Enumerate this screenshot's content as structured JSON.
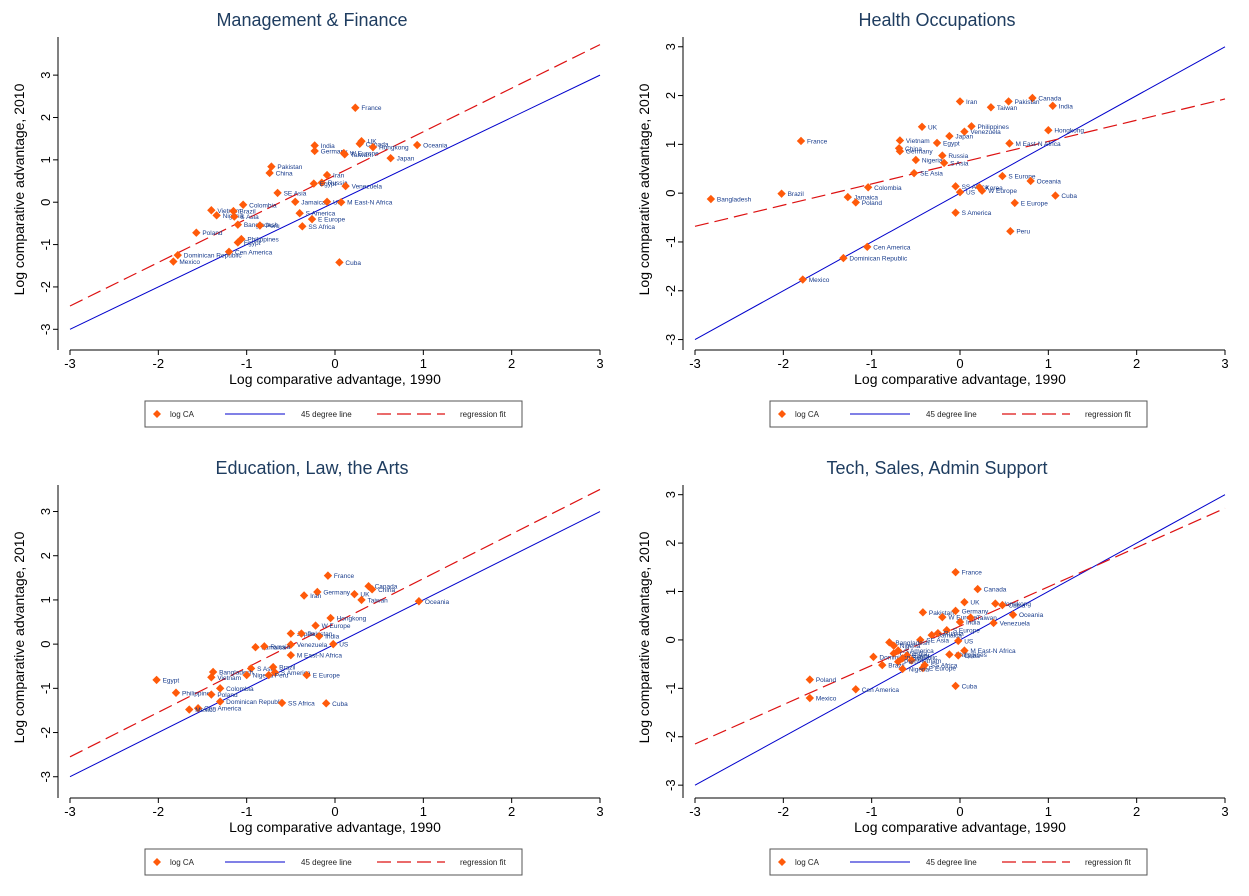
{
  "colors": {
    "marker": "#ff5a0a",
    "fortyfive": "#0000cc",
    "fit": "#dd1111",
    "axis": "#000000",
    "title": "#1f3d60",
    "point_label": "#1a3d8c"
  },
  "legend": {
    "marker_label": "log CA",
    "line45_label": "45 degree line",
    "fit_label": "regression fit"
  },
  "chart_data": [
    {
      "type": "scatter",
      "title": "Management & Finance",
      "xlabel": "Log comparative advantage, 1990",
      "ylabel": "Log comparative advantage, 2010",
      "xlim": [
        -3,
        3
      ],
      "ylim": [
        -3.3,
        3.9
      ],
      "xticks": [
        -3,
        -2,
        -1,
        0,
        1,
        2,
        3
      ],
      "yticks": [
        -3,
        -2,
        -1,
        0,
        1,
        2,
        3
      ],
      "fit_line": {
        "x": [
          -3,
          3
        ],
        "y": [
          -2.45,
          3.72
        ]
      },
      "line45": {
        "x": [
          -3,
          3
        ],
        "y": [
          -3,
          3
        ]
      },
      "points": [
        {
          "label": "France",
          "x": 0.23,
          "y": 2.23
        },
        {
          "label": "UK",
          "x": 0.3,
          "y": 1.44
        },
        {
          "label": "Canada",
          "x": 0.28,
          "y": 1.38
        },
        {
          "label": "India",
          "x": -0.23,
          "y": 1.34
        },
        {
          "label": "Hongkong",
          "x": 0.43,
          "y": 1.3
        },
        {
          "label": "Oceania",
          "x": 0.93,
          "y": 1.35
        },
        {
          "label": "Germany",
          "x": -0.23,
          "y": 1.21
        },
        {
          "label": "W Europe",
          "x": 0.1,
          "y": 1.16
        },
        {
          "label": "Taiwan",
          "x": 0.11,
          "y": 1.13
        },
        {
          "label": "Japan",
          "x": 0.63,
          "y": 1.04
        },
        {
          "label": "Pakistan",
          "x": -0.72,
          "y": 0.84
        },
        {
          "label": "China",
          "x": -0.74,
          "y": 0.69
        },
        {
          "label": "Iran",
          "x": -0.09,
          "y": 0.64
        },
        {
          "label": "Russia",
          "x": -0.15,
          "y": 0.46
        },
        {
          "label": "Egypt",
          "x": -0.24,
          "y": 0.44
        },
        {
          "label": "Venezuela",
          "x": 0.12,
          "y": 0.38
        },
        {
          "label": "SE Asia",
          "x": -0.65,
          "y": 0.22
        },
        {
          "label": "Jamaica",
          "x": -0.45,
          "y": 0.01
        },
        {
          "label": "US",
          "x": -0.09,
          "y": 0.01
        },
        {
          "label": "M East-N Africa",
          "x": 0.07,
          "y": 0.0
        },
        {
          "label": "Colombia",
          "x": -1.04,
          "y": -0.06
        },
        {
          "label": "Vietnam",
          "x": -1.4,
          "y": -0.19
        },
        {
          "label": "Brazil",
          "x": -1.15,
          "y": -0.21
        },
        {
          "label": "S America",
          "x": -0.4,
          "y": -0.26
        },
        {
          "label": "Nigeria",
          "x": -1.34,
          "y": -0.31
        },
        {
          "label": "S Asia",
          "x": -1.14,
          "y": -0.34
        },
        {
          "label": "E Europe",
          "x": -0.26,
          "y": -0.4
        },
        {
          "label": "Bangladesh",
          "x": -1.1,
          "y": -0.53
        },
        {
          "label": "Peru",
          "x": -0.85,
          "y": -0.55
        },
        {
          "label": "SS Africa",
          "x": -0.37,
          "y": -0.57
        },
        {
          "label": "Poland",
          "x": -1.57,
          "y": -0.72
        },
        {
          "label": "Philippines",
          "x": -1.06,
          "y": -0.87
        },
        {
          "label": "Egypt",
          "x": -1.1,
          "y": -0.95
        },
        {
          "label": "Cen America",
          "x": -1.2,
          "y": -1.17
        },
        {
          "label": "Dominican Republic",
          "x": -1.78,
          "y": -1.25
        },
        {
          "label": "Cuba",
          "x": 0.05,
          "y": -1.42
        },
        {
          "label": "Mexico",
          "x": -1.83,
          "y": -1.4
        }
      ]
    },
    {
      "type": "scatter",
      "title": "Health Occupations",
      "xlabel": "Log comparative advantage, 1990",
      "ylabel": "Log comparative advantage, 2010",
      "xlim": [
        -3,
        3
      ],
      "ylim": [
        -3.05,
        3.2
      ],
      "xticks": [
        -3,
        -2,
        -1,
        0,
        1,
        2,
        3
      ],
      "yticks": [
        -3,
        -2,
        -1,
        0,
        1,
        2,
        3
      ],
      "fit_line": {
        "x": [
          -3,
          3
        ],
        "y": [
          -0.68,
          1.93
        ]
      },
      "line45": {
        "x": [
          -3,
          3
        ],
        "y": [
          -3,
          3
        ]
      },
      "points": [
        {
          "label": "Canada",
          "x": 0.82,
          "y": 1.95
        },
        {
          "label": "Iran",
          "x": 0.0,
          "y": 1.88
        },
        {
          "label": "Pakistan",
          "x": 0.55,
          "y": 1.88
        },
        {
          "label": "Taiwan",
          "x": 0.35,
          "y": 1.76
        },
        {
          "label": "India",
          "x": 1.05,
          "y": 1.79
        },
        {
          "label": "UK",
          "x": -0.43,
          "y": 1.36
        },
        {
          "label": "Philippines",
          "x": 0.13,
          "y": 1.37
        },
        {
          "label": "Venezuela",
          "x": 0.05,
          "y": 1.26
        },
        {
          "label": "Hongkong",
          "x": 1.0,
          "y": 1.29
        },
        {
          "label": "Japan",
          "x": -0.12,
          "y": 1.17
        },
        {
          "label": "Vietnam",
          "x": -0.68,
          "y": 1.08
        },
        {
          "label": "France",
          "x": -1.8,
          "y": 1.07
        },
        {
          "label": "Egypt",
          "x": -0.26,
          "y": 1.03
        },
        {
          "label": "M East-N Africa",
          "x": 0.56,
          "y": 1.02
        },
        {
          "label": "China",
          "x": -0.69,
          "y": 0.92
        },
        {
          "label": "Germany",
          "x": -0.68,
          "y": 0.86
        },
        {
          "label": "Russia",
          "x": -0.2,
          "y": 0.77
        },
        {
          "label": "Nigeria",
          "x": -0.5,
          "y": 0.68
        },
        {
          "label": "S Asia",
          "x": -0.18,
          "y": 0.62
        },
        {
          "label": "SE Asia",
          "x": -0.52,
          "y": 0.41
        },
        {
          "label": "S Europe",
          "x": 0.48,
          "y": 0.35
        },
        {
          "label": "Oceania",
          "x": 0.8,
          "y": 0.25
        },
        {
          "label": "Colombia",
          "x": -1.04,
          "y": 0.12
        },
        {
          "label": "SS Africa",
          "x": -0.05,
          "y": 0.14
        },
        {
          "label": "Korea",
          "x": 0.22,
          "y": 0.12
        },
        {
          "label": "US",
          "x": 0.0,
          "y": 0.02
        },
        {
          "label": "W Europe",
          "x": 0.25,
          "y": 0.05
        },
        {
          "label": "Brazil",
          "x": -2.02,
          "y": -0.01
        },
        {
          "label": "Cuba",
          "x": 1.08,
          "y": -0.05
        },
        {
          "label": "Jamaica",
          "x": -1.27,
          "y": -0.08
        },
        {
          "label": "Bangladesh",
          "x": -2.82,
          "y": -0.12
        },
        {
          "label": "Poland",
          "x": -1.18,
          "y": -0.19
        },
        {
          "label": "E Europe",
          "x": 0.62,
          "y": -0.2
        },
        {
          "label": "S America",
          "x": -0.05,
          "y": -0.4
        },
        {
          "label": "Peru",
          "x": 0.57,
          "y": -0.78
        },
        {
          "label": "Cen America",
          "x": -1.05,
          "y": -1.1
        },
        {
          "label": "Dominican Republic",
          "x": -1.32,
          "y": -1.33
        },
        {
          "label": "Mexico",
          "x": -1.78,
          "y": -1.77
        }
      ]
    },
    {
      "type": "scatter",
      "title": "Education, Law, the Arts",
      "xlabel": "Log comparative advantage, 1990",
      "ylabel": "Log comparative advantage, 2010",
      "xlim": [
        -3,
        3
      ],
      "ylim": [
        -3.3,
        3.6
      ],
      "xticks": [
        -3,
        -2,
        -1,
        0,
        1,
        2,
        3
      ],
      "yticks": [
        -3,
        -2,
        -1,
        0,
        1,
        2,
        3
      ],
      "fit_line": {
        "x": [
          -3,
          3
        ],
        "y": [
          -2.55,
          3.5
        ]
      },
      "line45": {
        "x": [
          -3,
          3
        ],
        "y": [
          -3,
          3
        ]
      },
      "points": [
        {
          "label": "France",
          "x": -0.08,
          "y": 1.55
        },
        {
          "label": "Canada",
          "x": 0.38,
          "y": 1.31
        },
        {
          "label": "China",
          "x": 0.42,
          "y": 1.24
        },
        {
          "label": "Germany",
          "x": -0.2,
          "y": 1.18
        },
        {
          "label": "UK",
          "x": 0.22,
          "y": 1.13
        },
        {
          "label": "Iran",
          "x": -0.35,
          "y": 1.1
        },
        {
          "label": "Taiwan",
          "x": 0.3,
          "y": 1.0
        },
        {
          "label": "Oceania",
          "x": 0.95,
          "y": 0.97
        },
        {
          "label": "Hongkong",
          "x": -0.05,
          "y": 0.59
        },
        {
          "label": "W Europe",
          "x": -0.22,
          "y": 0.42
        },
        {
          "label": "Japan",
          "x": -0.5,
          "y": 0.24
        },
        {
          "label": "Pakistan",
          "x": -0.38,
          "y": 0.24
        },
        {
          "label": "India",
          "x": -0.18,
          "y": 0.18
        },
        {
          "label": "Venezuela",
          "x": -0.5,
          "y": -0.01
        },
        {
          "label": "US",
          "x": -0.02,
          "y": 0.0
        },
        {
          "label": "Jamaica",
          "x": -0.9,
          "y": -0.07
        },
        {
          "label": "Russia",
          "x": -0.8,
          "y": -0.05
        },
        {
          "label": "M East-N Africa",
          "x": -0.5,
          "y": -0.25
        },
        {
          "label": "S Asia",
          "x": -0.95,
          "y": -0.55
        },
        {
          "label": "Brazil",
          "x": -0.7,
          "y": -0.52
        },
        {
          "label": "Bangladesh",
          "x": -1.38,
          "y": -0.63
        },
        {
          "label": "S America",
          "x": -0.68,
          "y": -0.64
        },
        {
          "label": "Nigeria",
          "x": -1.0,
          "y": -0.7
        },
        {
          "label": "Peru",
          "x": -0.75,
          "y": -0.7
        },
        {
          "label": "E Europe",
          "x": -0.32,
          "y": -0.7
        },
        {
          "label": "Vietnam",
          "x": -1.4,
          "y": -0.75
        },
        {
          "label": "Egypt",
          "x": -2.02,
          "y": -0.81
        },
        {
          "label": "Colombia",
          "x": -1.3,
          "y": -1.0
        },
        {
          "label": "Philippines",
          "x": -1.8,
          "y": -1.1
        },
        {
          "label": "Poland",
          "x": -1.4,
          "y": -1.14
        },
        {
          "label": "Dominican Republic",
          "x": -1.3,
          "y": -1.3
        },
        {
          "label": "SS Africa",
          "x": -0.6,
          "y": -1.33
        },
        {
          "label": "Cuba",
          "x": -0.1,
          "y": -1.34
        },
        {
          "label": "Cen America",
          "x": -1.55,
          "y": -1.45
        },
        {
          "label": "Mexico",
          "x": -1.65,
          "y": -1.48
        }
      ]
    },
    {
      "type": "scatter",
      "title": "Tech, Sales, Admin Support",
      "xlabel": "Log comparative advantage, 1990",
      "ylabel": "Log comparative advantage, 2010",
      "xlim": [
        -3,
        3
      ],
      "ylim": [
        -3.1,
        3.2
      ],
      "xticks": [
        -3,
        -2,
        -1,
        0,
        1,
        2,
        3
      ],
      "yticks": [
        -3,
        -2,
        -1,
        0,
        1,
        2,
        3
      ],
      "fit_line": {
        "x": [
          -3,
          3
        ],
        "y": [
          -2.15,
          2.72
        ]
      },
      "line45": {
        "x": [
          -3,
          3
        ],
        "y": [
          -3,
          3
        ]
      },
      "points": [
        {
          "label": "France",
          "x": -0.05,
          "y": 1.4
        },
        {
          "label": "Canada",
          "x": 0.2,
          "y": 1.05
        },
        {
          "label": "UK",
          "x": 0.05,
          "y": 0.78
        },
        {
          "label": "Hongkong",
          "x": 0.4,
          "y": 0.75
        },
        {
          "label": "China",
          "x": 0.48,
          "y": 0.72
        },
        {
          "label": "Pakistan",
          "x": -0.42,
          "y": 0.57
        },
        {
          "label": "Germany",
          "x": -0.05,
          "y": 0.6
        },
        {
          "label": "Oceania",
          "x": 0.6,
          "y": 0.52
        },
        {
          "label": "W Europe",
          "x": -0.2,
          "y": 0.47
        },
        {
          "label": "Taiwan",
          "x": 0.12,
          "y": 0.46
        },
        {
          "label": "India",
          "x": 0.0,
          "y": 0.37
        },
        {
          "label": "Venezuela",
          "x": 0.38,
          "y": 0.35
        },
        {
          "label": "S Europe",
          "x": -0.15,
          "y": 0.2
        },
        {
          "label": "Russia",
          "x": -0.25,
          "y": 0.14
        },
        {
          "label": "Jamaica",
          "x": -0.32,
          "y": 0.1
        },
        {
          "label": "SE Asia",
          "x": -0.45,
          "y": 0.0
        },
        {
          "label": "US",
          "x": -0.02,
          "y": -0.02
        },
        {
          "label": "Bangladesh",
          "x": -0.8,
          "y": -0.05
        },
        {
          "label": "Nigeria",
          "x": -0.75,
          "y": -0.12
        },
        {
          "label": "S America",
          "x": -0.7,
          "y": -0.22
        },
        {
          "label": "M East-N Africa",
          "x": 0.05,
          "y": -0.22
        },
        {
          "label": "Colombia",
          "x": -0.75,
          "y": -0.28
        },
        {
          "label": "Philippines",
          "x": -0.12,
          "y": -0.3
        },
        {
          "label": "Egypt",
          "x": -0.6,
          "y": -0.32
        },
        {
          "label": "Dominican Republic",
          "x": -0.98,
          "y": -0.35
        },
        {
          "label": "Iran",
          "x": -0.65,
          "y": -0.38
        },
        {
          "label": "Vietnam",
          "x": -0.55,
          "y": -0.42
        },
        {
          "label": "Cuba",
          "x": -0.02,
          "y": -0.32
        },
        {
          "label": "Peru",
          "x": -0.7,
          "y": -0.45
        },
        {
          "label": "SS Africa",
          "x": -0.4,
          "y": -0.52
        },
        {
          "label": "Brazil",
          "x": -0.88,
          "y": -0.52
        },
        {
          "label": "E Europe",
          "x": -0.42,
          "y": -0.58
        },
        {
          "label": "Nigeria",
          "x": -0.65,
          "y": -0.6
        },
        {
          "label": "Cuba",
          "x": -0.05,
          "y": -0.95
        },
        {
          "label": "Poland",
          "x": -1.7,
          "y": -0.82
        },
        {
          "label": "Cen America",
          "x": -1.18,
          "y": -1.02
        },
        {
          "label": "Mexico",
          "x": -1.7,
          "y": -1.2
        }
      ]
    }
  ]
}
